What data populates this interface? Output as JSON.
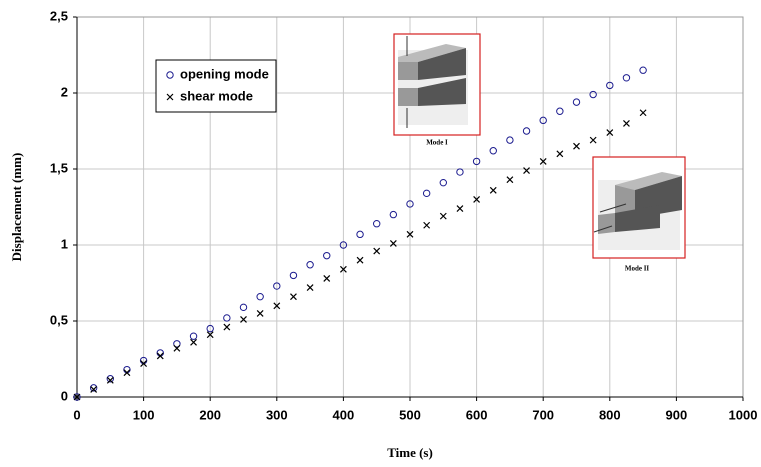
{
  "chart_data": {
    "type": "scatter",
    "x_label": "Time (s)",
    "y_label": "Displacement (mm)",
    "x": [
      0,
      25,
      50,
      75,
      100,
      125,
      150,
      175,
      200,
      225,
      250,
      275,
      300,
      325,
      350,
      375,
      400,
      425,
      450,
      475,
      500,
      525,
      550,
      575,
      600,
      625,
      650,
      675,
      700,
      725,
      750,
      775,
      800,
      825,
      850
    ],
    "series": [
      {
        "name": "opening mode",
        "color": "#1c1c8f",
        "marker": "circle",
        "values": [
          0,
          0.06,
          0.12,
          0.18,
          0.24,
          0.29,
          0.35,
          0.4,
          0.45,
          0.52,
          0.59,
          0.66,
          0.73,
          0.8,
          0.87,
          0.93,
          1.0,
          1.07,
          1.14,
          1.2,
          1.27,
          1.34,
          1.41,
          1.48,
          1.55,
          1.62,
          1.69,
          1.75,
          1.82,
          1.88,
          1.94,
          1.99,
          2.05,
          2.1,
          2.15
        ]
      },
      {
        "name": "shear mode",
        "color": "#000000",
        "marker": "cross",
        "values": [
          0,
          0.05,
          0.11,
          0.16,
          0.22,
          0.27,
          0.32,
          0.36,
          0.41,
          0.46,
          0.51,
          0.55,
          0.6,
          0.66,
          0.72,
          0.78,
          0.84,
          0.9,
          0.96,
          1.01,
          1.07,
          1.13,
          1.19,
          1.24,
          1.3,
          1.36,
          1.43,
          1.49,
          1.55,
          1.6,
          1.65,
          1.69,
          1.74,
          1.8,
          1.87
        ]
      }
    ],
    "xlim": [
      0,
      1000
    ],
    "xticks": [
      0,
      100,
      200,
      300,
      400,
      500,
      600,
      700,
      800,
      900,
      1000
    ],
    "ylim": [
      0,
      2.5
    ],
    "yticks": [
      0,
      {
        "value": 0.5,
        "label": "0,5"
      },
      1,
      {
        "value": 1.5,
        "label": "1,5"
      },
      2,
      {
        "value": 2.5,
        "label": "2,5"
      }
    ],
    "grid": true,
    "annotations": [
      "Mode I",
      "Mode II"
    ]
  }
}
